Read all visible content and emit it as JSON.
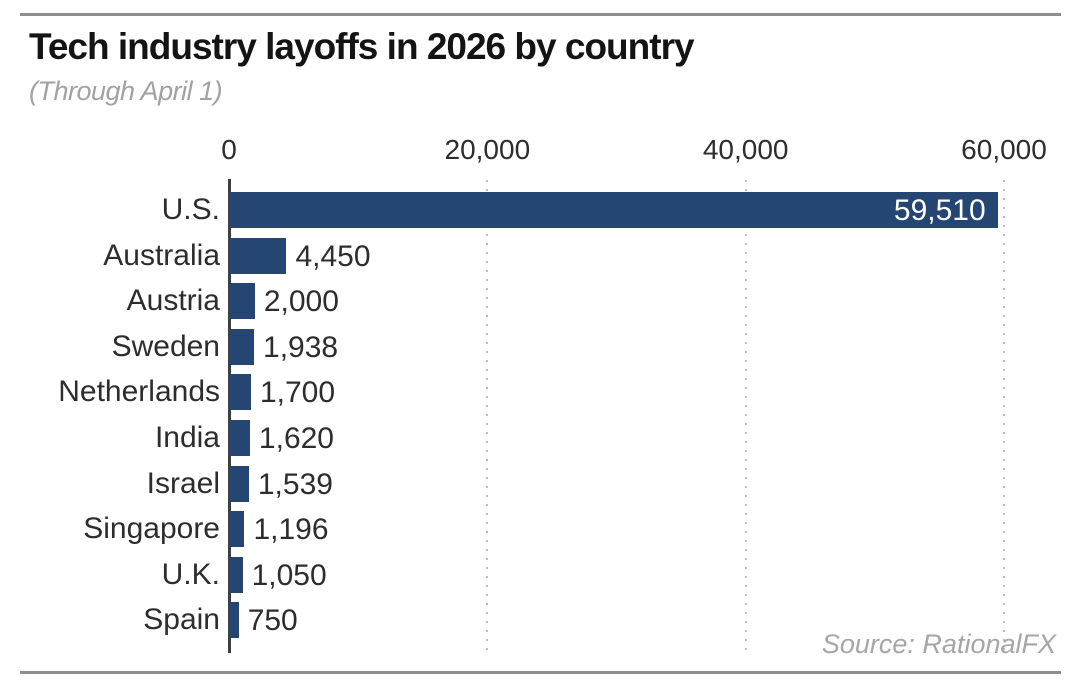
{
  "header": {
    "title": "Tech industry layoffs in 2026 by country",
    "subtitle": "(Through April 1)"
  },
  "source": "Source: RationalFX",
  "colors": {
    "bar": "#254673",
    "title_text": "#141414",
    "subtitle_text": "#a2a2a2",
    "label_text": "#2d2d2d",
    "value_inside_text": "#ffffff",
    "gridline": "#bdbdbd",
    "axis_line": "#3f3f3f",
    "rule_line": "#8e8e8e"
  },
  "chart_data": {
    "type": "bar",
    "orientation": "horizontal",
    "title": "Tech industry layoffs in 2026 by country",
    "subtitle": "(Through April 1)",
    "categories": [
      "U.S.",
      "Australia",
      "Austria",
      "Sweden",
      "Netherlands",
      "India",
      "Israel",
      "Singapore",
      "U.K.",
      "Spain"
    ],
    "values": [
      59510,
      4450,
      2000,
      1938,
      1700,
      1620,
      1539,
      1196,
      1050,
      750
    ],
    "value_labels": [
      "59,510",
      "4,450",
      "2,000",
      "1,938",
      "1,700",
      "1,620",
      "1,539",
      "1,196",
      "1,050",
      "750"
    ],
    "xlabel": "",
    "ylabel": "",
    "xlim": [
      0,
      60000
    ],
    "xticks": [
      0,
      20000,
      40000,
      60000
    ],
    "xtick_labels": [
      "0",
      "20,000",
      "40,000",
      "60,000"
    ],
    "grid": "vertical dotted gridlines at ticks",
    "legend": false,
    "value_label_position": "outside right, largest bar labeled inside in white",
    "source": "Source: RationalFX"
  }
}
